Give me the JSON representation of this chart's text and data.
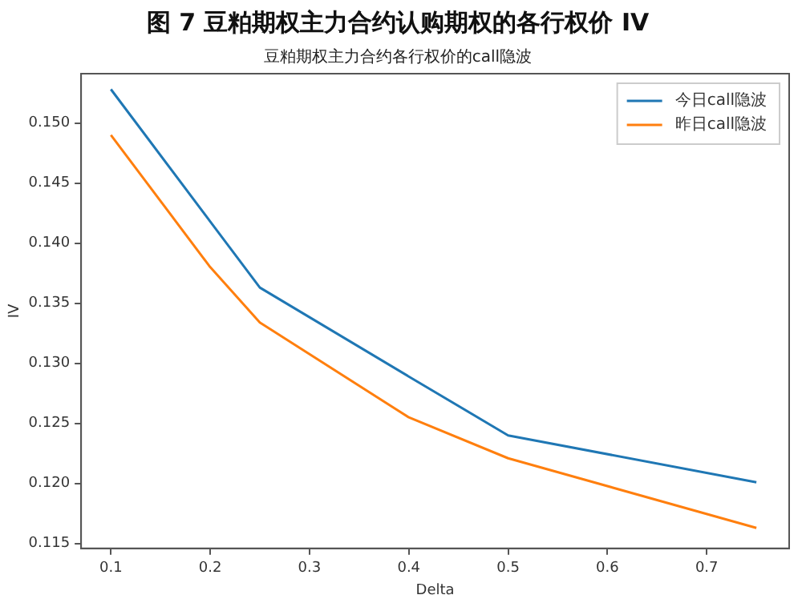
{
  "chart_data": {
    "type": "line",
    "title": "图 7 豆粕期权主力合约认购期权的各行权价 IV",
    "subtitle": "豆粕期权主力合约各行权价的call隐波",
    "xlabel": "Delta",
    "ylabel": "IV",
    "x": [
      0.1,
      0.2,
      0.25,
      0.4,
      0.5,
      0.75
    ],
    "series": [
      {
        "name": "今日call隐波",
        "color": "#1f77b4",
        "values": [
          0.1528,
          0.1418,
          0.1363,
          0.1289,
          0.124,
          0.1201
        ]
      },
      {
        "name": "昨日call隐波",
        "color": "#ff7f0e",
        "values": [
          0.149,
          0.138,
          0.1334,
          0.1255,
          0.1221,
          0.1163
        ]
      }
    ],
    "xlim": [
      0.07,
      0.783
    ],
    "ylim": [
      0.1146,
      0.1541
    ],
    "xticks": [
      {
        "value": 0.1,
        "label": "0.1"
      },
      {
        "value": 0.2,
        "label": "0.2"
      },
      {
        "value": 0.3,
        "label": "0.3"
      },
      {
        "value": 0.4,
        "label": "0.4"
      },
      {
        "value": 0.5,
        "label": "0.5"
      },
      {
        "value": 0.6,
        "label": "0.6"
      },
      {
        "value": 0.7,
        "label": "0.7"
      }
    ],
    "yticks": [
      {
        "value": 0.115,
        "label": "0.115"
      },
      {
        "value": 0.12,
        "label": "0.120"
      },
      {
        "value": 0.125,
        "label": "0.125"
      },
      {
        "value": 0.13,
        "label": "0.130"
      },
      {
        "value": 0.135,
        "label": "0.135"
      },
      {
        "value": 0.14,
        "label": "0.140"
      },
      {
        "value": 0.145,
        "label": "0.145"
      },
      {
        "value": 0.15,
        "label": "0.150"
      }
    ],
    "grid": false,
    "legend": "top right",
    "marker": "none",
    "line_style": "solid"
  }
}
